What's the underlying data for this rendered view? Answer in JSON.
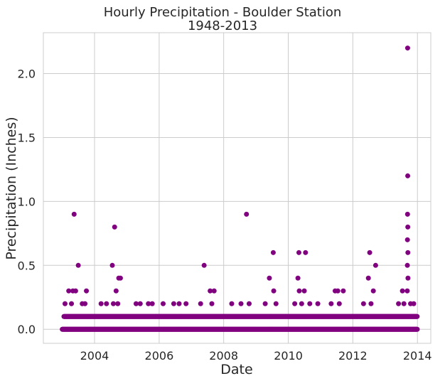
{
  "chart_data": {
    "type": "scatter",
    "title": "Hourly Precipitation - Boulder Station",
    "subtitle": "1948-2013",
    "xlabel": "Date",
    "ylabel": "Precipitation (Inches)",
    "xlim": [
      "2002-06-01",
      "2014-06-01"
    ],
    "ylim": [
      -0.11,
      2.32
    ],
    "x_ticks": [
      "2004",
      "2006",
      "2008",
      "2010",
      "2012",
      "2014"
    ],
    "y_ticks": [
      "0.0",
      "0.5",
      "1.0",
      "1.5",
      "2.0"
    ],
    "grid": true,
    "legend": "none",
    "colors": {
      "marker": "#800080",
      "grid": "#cccccc",
      "frame": "#cccccc",
      "text": "#262626"
    },
    "series": [
      {
        "points": [
          {
            "x": "2003-05-15",
            "y": 0.9
          },
          {
            "x": "2003-07-01",
            "y": 0.5
          },
          {
            "x": "2003-03-15",
            "y": 0.3
          },
          {
            "x": "2003-05-01",
            "y": 0.3
          },
          {
            "x": "2003-06-01",
            "y": 0.3
          },
          {
            "x": "2003-10-01",
            "y": 0.3
          },
          {
            "x": "2003-02-01",
            "y": 0.2
          },
          {
            "x": "2003-04-15",
            "y": 0.2
          },
          {
            "x": "2003-08-15",
            "y": 0.2
          },
          {
            "x": "2003-09-15",
            "y": 0.2
          },
          {
            "x": "2004-08-15",
            "y": 0.8
          },
          {
            "x": "2004-07-20",
            "y": 0.5
          },
          {
            "x": "2004-10-01",
            "y": 0.4
          },
          {
            "x": "2004-10-20",
            "y": 0.4
          },
          {
            "x": "2004-09-01",
            "y": 0.3
          },
          {
            "x": "2004-08-01",
            "y": 0.2
          },
          {
            "x": "2004-09-20",
            "y": 0.2
          },
          {
            "x": "2004-05-15",
            "y": 0.2
          },
          {
            "x": "2004-03-15",
            "y": 0.2
          },
          {
            "x": "2005-04-15",
            "y": 0.2
          },
          {
            "x": "2005-06-01",
            "y": 0.2
          },
          {
            "x": "2005-09-01",
            "y": 0.2
          },
          {
            "x": "2005-10-15",
            "y": 0.2
          },
          {
            "x": "2006-02-15",
            "y": 0.2
          },
          {
            "x": "2006-06-15",
            "y": 0.2
          },
          {
            "x": "2006-08-15",
            "y": 0.2
          },
          {
            "x": "2006-11-01",
            "y": 0.2
          },
          {
            "x": "2007-05-25",
            "y": 0.5
          },
          {
            "x": "2007-08-01",
            "y": 0.3
          },
          {
            "x": "2007-09-15",
            "y": 0.3
          },
          {
            "x": "2007-04-15",
            "y": 0.2
          },
          {
            "x": "2007-08-20",
            "y": 0.2
          },
          {
            "x": "2008-09-15",
            "y": 0.9
          },
          {
            "x": "2008-04-01",
            "y": 0.2
          },
          {
            "x": "2008-07-15",
            "y": 0.2
          },
          {
            "x": "2008-10-15",
            "y": 0.2
          },
          {
            "x": "2009-07-15",
            "y": 0.6
          },
          {
            "x": "2009-06-01",
            "y": 0.4
          },
          {
            "x": "2009-07-20",
            "y": 0.3
          },
          {
            "x": "2009-04-15",
            "y": 0.2
          },
          {
            "x": "2009-08-15",
            "y": 0.2
          },
          {
            "x": "2010-05-01",
            "y": 0.6
          },
          {
            "x": "2010-07-15",
            "y": 0.6
          },
          {
            "x": "2010-04-20",
            "y": 0.4
          },
          {
            "x": "2010-05-05",
            "y": 0.3
          },
          {
            "x": "2010-07-01",
            "y": 0.3
          },
          {
            "x": "2010-03-15",
            "y": 0.2
          },
          {
            "x": "2010-06-01",
            "y": 0.2
          },
          {
            "x": "2010-09-01",
            "y": 0.2
          },
          {
            "x": "2010-12-01",
            "y": 0.2
          },
          {
            "x": "2011-06-15",
            "y": 0.3
          },
          {
            "x": "2011-07-15",
            "y": 0.3
          },
          {
            "x": "2011-09-15",
            "y": 0.3
          },
          {
            "x": "2011-05-01",
            "y": 0.2
          },
          {
            "x": "2011-08-01",
            "y": 0.2
          },
          {
            "x": "2012-07-10",
            "y": 0.6
          },
          {
            "x": "2012-06-25",
            "y": 0.4
          },
          {
            "x": "2012-09-15",
            "y": 0.5
          },
          {
            "x": "2012-08-20",
            "y": 0.3
          },
          {
            "x": "2012-05-01",
            "y": 0.2
          },
          {
            "x": "2012-07-25",
            "y": 0.2
          },
          {
            "x": "2013-09-12",
            "y": 2.2
          },
          {
            "x": "2013-09-13",
            "y": 1.2
          },
          {
            "x": "2013-09-11",
            "y": 0.9
          },
          {
            "x": "2013-09-14",
            "y": 0.8
          },
          {
            "x": "2013-09-10",
            "y": 0.7
          },
          {
            "x": "2013-09-15",
            "y": 0.6
          },
          {
            "x": "2013-09-09",
            "y": 0.5
          },
          {
            "x": "2013-09-16",
            "y": 0.4
          },
          {
            "x": "2013-09-08",
            "y": 0.3
          },
          {
            "x": "2013-07-15",
            "y": 0.3
          },
          {
            "x": "2013-06-01",
            "y": 0.2
          },
          {
            "x": "2013-08-01",
            "y": 0.2
          },
          {
            "x": "2013-10-15",
            "y": 0.2
          },
          {
            "x": "2013-11-20",
            "y": 0.2
          }
        ],
        "daily_bands": [
          {
            "y": 0.0,
            "from": "2003-01-01",
            "to": "2014-01-01"
          },
          {
            "y": 0.1,
            "from": "2003-01-20",
            "to": "2014-01-01"
          }
        ]
      }
    ]
  }
}
